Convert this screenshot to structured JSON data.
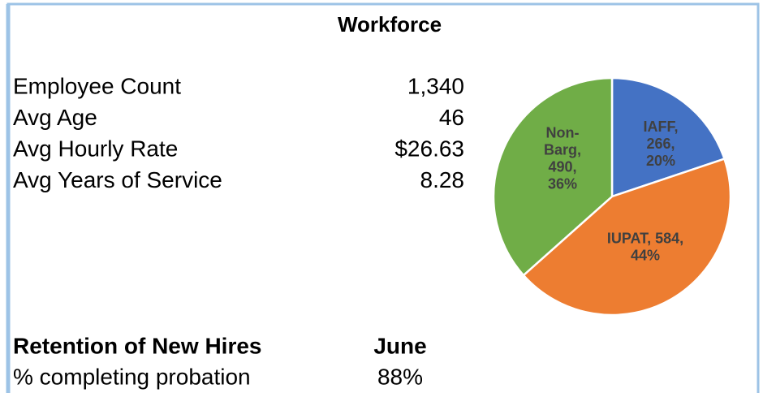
{
  "header": {
    "title": "Workforce"
  },
  "metrics": [
    {
      "label": "Employee Count",
      "value": "1,340"
    },
    {
      "label": "Avg Age",
      "value": "46"
    },
    {
      "label": "Avg Hourly Rate",
      "value": "$26.63"
    },
    {
      "label": "Avg Years of Service",
      "value": "8.28"
    }
  ],
  "retention": {
    "title": "Retention of New Hires",
    "period": "June",
    "label": "% completing probation",
    "value": "88%"
  },
  "chart_data": {
    "type": "pie",
    "categories": [
      "IAFF",
      "IUPAT",
      "Non-Barg"
    ],
    "values": [
      266,
      584,
      490
    ],
    "value_labels": [
      [
        "IAFF,",
        "266,",
        "20%"
      ],
      [
        "IUPAT, 584,",
        "44%"
      ],
      [
        "Non-",
        "Barg,",
        "490,",
        "36%"
      ]
    ],
    "colors": [
      "#4472c4",
      "#ed7d31",
      "#70ad47"
    ]
  }
}
